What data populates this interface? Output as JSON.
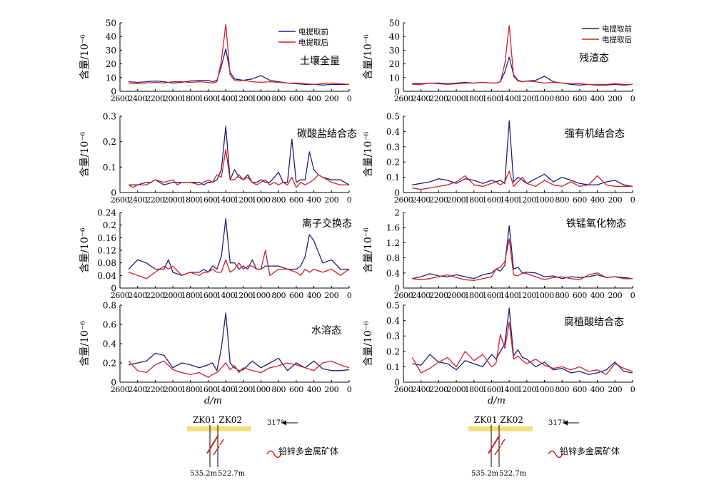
{
  "colors": {
    "before": "#1f1f7a",
    "after": "#d01f25",
    "axis": "#000000",
    "ore": "#f3e07a"
  },
  "legend": {
    "before": "电提取前",
    "after": "电提取后"
  },
  "ylabel": "含量/10⁻⁶",
  "xlabel": "d/m",
  "x_ticks": [
    2600,
    2400,
    2200,
    2000,
    1800,
    1600,
    1400,
    1200,
    1000,
    800,
    600,
    400,
    200,
    0
  ],
  "sections": [
    {
      "drill_labels": "ZK01 ZK02",
      "azimuth": "317°",
      "ore_label": "铅锌多金属矿体",
      "depth_left": "535.2m",
      "depth_right": "522.7m"
    },
    {
      "drill_labels": "ZK01 ZK02",
      "azimuth": "317°",
      "ore_label": "铅锌多金属矿体",
      "depth_left": "535.2m",
      "depth_right": "522.7m"
    }
  ],
  "chart_data": [
    {
      "type": "line",
      "title": "土壤全量",
      "xlabel": "",
      "ylabel": "含量/10⁻⁶",
      "xlim": [
        2600,
        0
      ],
      "ylim": [
        0,
        50
      ],
      "yticks": [
        0,
        10,
        20,
        30,
        40,
        50
      ],
      "legend": "top-right",
      "x": [
        2500,
        2400,
        2300,
        2200,
        2100,
        2000,
        1900,
        1800,
        1700,
        1600,
        1550,
        1500,
        1450,
        1400,
        1350,
        1300,
        1250,
        1200,
        1100,
        1000,
        900,
        800,
        700,
        600,
        500,
        400,
        300,
        200,
        100,
        0
      ],
      "series": [
        {
          "name": "电提取前",
          "values": [
            7,
            6.5,
            7,
            7.5,
            7,
            6,
            6.5,
            7.5,
            8,
            8,
            7,
            8,
            18,
            31,
            14,
            9,
            8.5,
            8,
            9,
            11.5,
            8,
            7,
            6,
            5.5,
            5,
            5,
            4.5,
            5,
            5,
            5
          ]
        },
        {
          "name": "电提取后",
          "values": [
            6,
            5.5,
            6,
            6.5,
            6,
            7,
            7,
            6.5,
            7,
            6.5,
            6,
            7,
            22,
            49,
            12,
            8,
            7.5,
            8,
            7,
            6.5,
            7,
            6.5,
            6,
            6,
            5.5,
            5,
            5.5,
            6,
            5.5,
            5
          ]
        }
      ]
    },
    {
      "type": "line",
      "title": "残渣态",
      "xlabel": "",
      "ylabel": "含量/10⁻⁶",
      "xlim": [
        2600,
        0
      ],
      "ylim": [
        0,
        50
      ],
      "yticks": [
        0,
        10,
        20,
        30,
        40,
        50
      ],
      "legend": "top-right",
      "x": [
        2500,
        2400,
        2300,
        2200,
        2100,
        2000,
        1900,
        1800,
        1700,
        1600,
        1550,
        1500,
        1450,
        1400,
        1350,
        1300,
        1250,
        1200,
        1100,
        1000,
        900,
        800,
        700,
        600,
        500,
        400,
        300,
        200,
        100,
        0
      ],
      "series": [
        {
          "name": "电提取前",
          "values": [
            6,
            5.5,
            6,
            6,
            5.5,
            6,
            6.5,
            6,
            6.5,
            6,
            6,
            7,
            14,
            25,
            12,
            8,
            7,
            7.5,
            8,
            11,
            7,
            6,
            5,
            4.5,
            5,
            4.5,
            4.5,
            5,
            4.5,
            5
          ]
        },
        {
          "name": "电提取后",
          "values": [
            5,
            5,
            6,
            5.5,
            5,
            5.5,
            6,
            6,
            6.5,
            6,
            6,
            7,
            20,
            48,
            11,
            7.5,
            7,
            7.5,
            7,
            6,
            6.5,
            6,
            5.5,
            5.5,
            5,
            5,
            5,
            5.5,
            5,
            5
          ]
        }
      ]
    },
    {
      "type": "line",
      "title": "碳酸盐结合态",
      "xlabel": "",
      "ylabel": "含量/10⁻⁶",
      "xlim": [
        2600,
        0
      ],
      "ylim": [
        0,
        0.3
      ],
      "yticks": [
        0,
        0.1,
        0.2,
        0.3
      ],
      "x": [
        2500,
        2450,
        2400,
        2300,
        2250,
        2200,
        2100,
        2000,
        1950,
        1900,
        1800,
        1700,
        1650,
        1600,
        1550,
        1500,
        1450,
        1400,
        1350,
        1300,
        1250,
        1200,
        1150,
        1100,
        1050,
        1000,
        950,
        900,
        850,
        800,
        750,
        700,
        650,
        600,
        550,
        500,
        450,
        400,
        350,
        300,
        200,
        100,
        0
      ],
      "series": [
        {
          "name": "电提取前",
          "values": [
            0.03,
            0.03,
            0.03,
            0.04,
            0.04,
            0.05,
            0.03,
            0.04,
            0.04,
            0.04,
            0.04,
            0.04,
            0.03,
            0.04,
            0.04,
            0.05,
            0.09,
            0.26,
            0.05,
            0.09,
            0.06,
            0.05,
            0.07,
            0.04,
            0.04,
            0.05,
            0.04,
            0.04,
            0.06,
            0.08,
            0.04,
            0.04,
            0.21,
            0.04,
            0.05,
            0.05,
            0.16,
            0.09,
            0.07,
            0.06,
            0.05,
            0.05,
            0.03
          ]
        },
        {
          "name": "电提取后",
          "values": [
            0.03,
            0.02,
            0.03,
            0.03,
            0.04,
            0.05,
            0.04,
            0.05,
            0.03,
            0.04,
            0.04,
            0.03,
            0.04,
            0.05,
            0.04,
            0.07,
            0.06,
            0.17,
            0.05,
            0.05,
            0.07,
            0.05,
            0.06,
            0.04,
            0.03,
            0.04,
            0.05,
            0.03,
            0.04,
            0.03,
            0.04,
            0.03,
            0.06,
            0.02,
            0.04,
            0.03,
            0.04,
            0.05,
            0.07,
            0.06,
            0.04,
            0.03,
            0.03
          ]
        }
      ]
    },
    {
      "type": "line",
      "title": "强有机结合态",
      "xlabel": "",
      "ylabel": "含量/10⁻⁶",
      "xlim": [
        2600,
        0
      ],
      "ylim": [
        0,
        0.5
      ],
      "yticks": [
        0,
        0.1,
        0.2,
        0.3,
        0.4,
        0.5
      ],
      "x": [
        2500,
        2400,
        2300,
        2200,
        2100,
        2000,
        1900,
        1800,
        1700,
        1600,
        1550,
        1500,
        1450,
        1400,
        1350,
        1300,
        1250,
        1200,
        1100,
        1000,
        900,
        800,
        700,
        600,
        500,
        400,
        300,
        200,
        100,
        0
      ],
      "series": [
        {
          "name": "电提取前",
          "values": [
            0.05,
            0.06,
            0.07,
            0.09,
            0.08,
            0.06,
            0.09,
            0.08,
            0.06,
            0.08,
            0.07,
            0.08,
            0.06,
            0.47,
            0.07,
            0.1,
            0.08,
            0.06,
            0.09,
            0.12,
            0.07,
            0.1,
            0.08,
            0.06,
            0.05,
            0.05,
            0.07,
            0.08,
            0.05,
            0.04
          ]
        },
        {
          "name": "电提取后",
          "values": [
            0.03,
            0.02,
            0.03,
            0.04,
            0.05,
            0.07,
            0.11,
            0.05,
            0.04,
            0.06,
            0.07,
            0.05,
            0.07,
            0.14,
            0.04,
            0.07,
            0.1,
            0.06,
            0.04,
            0.08,
            0.05,
            0.04,
            0.07,
            0.04,
            0.05,
            0.11,
            0.05,
            0.04,
            0.04,
            0.04
          ]
        }
      ]
    },
    {
      "type": "line",
      "title": "离子交换态",
      "xlabel": "",
      "ylabel": "含量/10⁻⁶",
      "xlim": [
        2600,
        0
      ],
      "ylim": [
        0,
        0.24
      ],
      "yticks": [
        0,
        0.04,
        0.08,
        0.12,
        0.16,
        0.2,
        0.24
      ],
      "x": [
        2500,
        2400,
        2300,
        2200,
        2100,
        2050,
        2000,
        1900,
        1800,
        1700,
        1650,
        1600,
        1550,
        1500,
        1450,
        1400,
        1350,
        1300,
        1250,
        1200,
        1150,
        1100,
        1050,
        1000,
        950,
        900,
        800,
        700,
        600,
        550,
        500,
        450,
        400,
        300,
        200,
        100,
        0
      ],
      "series": [
        {
          "name": "电提取前",
          "values": [
            0.06,
            0.09,
            0.08,
            0.06,
            0.06,
            0.09,
            0.05,
            0.04,
            0.05,
            0.05,
            0.06,
            0.05,
            0.07,
            0.06,
            0.1,
            0.22,
            0.08,
            0.08,
            0.06,
            0.07,
            0.06,
            0.09,
            0.06,
            0.06,
            0.07,
            0.07,
            0.07,
            0.06,
            0.06,
            0.07,
            0.1,
            0.17,
            0.15,
            0.08,
            0.09,
            0.06,
            0.06
          ]
        },
        {
          "name": "电提取后",
          "values": [
            0.05,
            0.04,
            0.03,
            0.05,
            0.07,
            0.06,
            0.07,
            0.04,
            0.05,
            0.04,
            0.05,
            0.05,
            0.06,
            0.05,
            0.05,
            0.09,
            0.05,
            0.06,
            0.08,
            0.06,
            0.07,
            0.07,
            0.06,
            0.06,
            0.12,
            0.04,
            0.06,
            0.06,
            0.05,
            0.04,
            0.06,
            0.05,
            0.06,
            0.05,
            0.06,
            0.04,
            0.06
          ]
        }
      ]
    },
    {
      "type": "line",
      "title": "铁锰氧化物态",
      "xlabel": "",
      "ylabel": "含量/10⁻⁶",
      "xlim": [
        2600,
        0
      ],
      "ylim": [
        0,
        2
      ],
      "yticks": [
        0,
        0.4,
        0.8,
        1.2,
        1.6,
        2
      ],
      "x": [
        2500,
        2400,
        2300,
        2200,
        2100,
        2000,
        1900,
        1800,
        1700,
        1600,
        1550,
        1500,
        1450,
        1400,
        1350,
        1300,
        1250,
        1200,
        1100,
        1000,
        900,
        800,
        700,
        600,
        500,
        400,
        300,
        200,
        100,
        0
      ],
      "series": [
        {
          "name": "电提取前",
          "values": [
            0.25,
            0.3,
            0.38,
            0.32,
            0.3,
            0.35,
            0.3,
            0.25,
            0.35,
            0.4,
            0.5,
            0.45,
            0.6,
            1.65,
            0.5,
            0.55,
            0.4,
            0.42,
            0.4,
            0.3,
            0.32,
            0.25,
            0.3,
            0.28,
            0.3,
            0.35,
            0.28,
            0.3,
            0.28,
            0.25
          ]
        },
        {
          "name": "电提取后",
          "values": [
            0.25,
            0.22,
            0.25,
            0.3,
            0.35,
            0.28,
            0.22,
            0.2,
            0.25,
            0.3,
            0.5,
            0.55,
            0.7,
            1.3,
            0.35,
            0.32,
            0.4,
            0.38,
            0.3,
            0.22,
            0.28,
            0.3,
            0.25,
            0.22,
            0.35,
            0.4,
            0.28,
            0.3,
            0.25,
            0.25
          ]
        }
      ]
    },
    {
      "type": "line",
      "title": "水溶态",
      "xlabel": "d/m",
      "ylabel": "含量/10⁻⁶",
      "xlim": [
        2600,
        0
      ],
      "ylim": [
        0,
        0.8
      ],
      "yticks": [
        0,
        0.2,
        0.4,
        0.6,
        0.8
      ],
      "x": [
        2500,
        2400,
        2300,
        2200,
        2100,
        2000,
        1900,
        1800,
        1700,
        1600,
        1550,
        1500,
        1450,
        1400,
        1350,
        1300,
        1250,
        1200,
        1100,
        1000,
        900,
        800,
        700,
        600,
        500,
        400,
        300,
        200,
        100,
        0
      ],
      "series": [
        {
          "name": "电提取前",
          "values": [
            0.18,
            0.2,
            0.22,
            0.3,
            0.28,
            0.15,
            0.2,
            0.18,
            0.15,
            0.18,
            0.2,
            0.12,
            0.35,
            0.72,
            0.2,
            0.15,
            0.12,
            0.13,
            0.22,
            0.15,
            0.2,
            0.25,
            0.12,
            0.2,
            0.15,
            0.22,
            0.14,
            0.12,
            0.12,
            0.13
          ]
        },
        {
          "name": "电提取后",
          "values": [
            0.22,
            0.12,
            0.1,
            0.18,
            0.22,
            0.13,
            0.1,
            0.08,
            0.1,
            0.05,
            0.08,
            0.1,
            0.15,
            0.2,
            0.13,
            0.17,
            0.1,
            0.15,
            0.12,
            0.1,
            0.15,
            0.17,
            0.2,
            0.18,
            0.15,
            0.12,
            0.2,
            0.22,
            0.18,
            0.15
          ]
        }
      ]
    },
    {
      "type": "line",
      "title": "腐植酸结合态",
      "xlabel": "d/m",
      "ylabel": "含量/10⁻⁶",
      "xlim": [
        2600,
        0
      ],
      "ylim": [
        0,
        0.5
      ],
      "yticks": [
        0,
        0.1,
        0.2,
        0.3,
        0.4,
        0.5
      ],
      "x": [
        2500,
        2400,
        2300,
        2200,
        2100,
        2000,
        1900,
        1800,
        1700,
        1600,
        1550,
        1500,
        1450,
        1400,
        1350,
        1300,
        1250,
        1200,
        1100,
        1000,
        900,
        800,
        700,
        600,
        500,
        400,
        300,
        200,
        100,
        0
      ],
      "series": [
        {
          "name": "电提取前",
          "values": [
            0.12,
            0.11,
            0.18,
            0.13,
            0.12,
            0.08,
            0.14,
            0.12,
            0.1,
            0.18,
            0.15,
            0.2,
            0.25,
            0.48,
            0.17,
            0.21,
            0.16,
            0.15,
            0.1,
            0.13,
            0.08,
            0.09,
            0.06,
            0.07,
            0.05,
            0.06,
            0.08,
            0.13,
            0.07,
            0.06
          ]
        },
        {
          "name": "电提取后",
          "values": [
            0.16,
            0.06,
            0.09,
            0.13,
            0.16,
            0.1,
            0.2,
            0.14,
            0.18,
            0.1,
            0.12,
            0.31,
            0.22,
            0.39,
            0.15,
            0.17,
            0.14,
            0.12,
            0.15,
            0.11,
            0.09,
            0.1,
            0.08,
            0.1,
            0.07,
            0.08,
            0.05,
            0.12,
            0.09,
            0.07
          ]
        }
      ]
    }
  ]
}
